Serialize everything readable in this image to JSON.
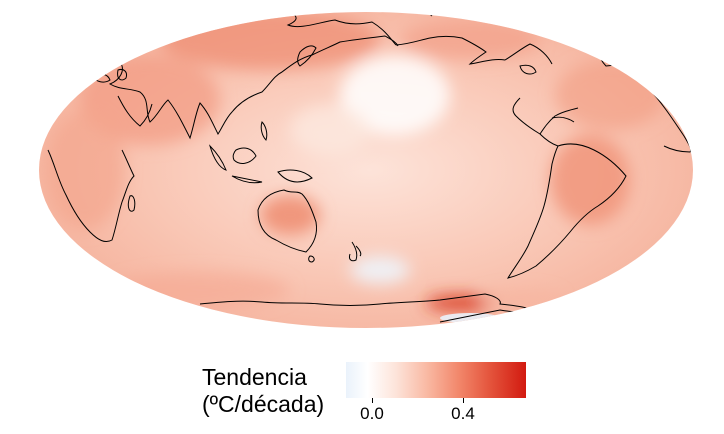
{
  "map": {
    "projection": "mollweide",
    "center": "pacific",
    "colors": {
      "ocean_base": "#f7c7b7",
      "land_warm": "#f3a08a",
      "cool": "#eaf2fb",
      "hot": "#d21a10",
      "coastline": "#000000"
    }
  },
  "legend": {
    "title_line1": "Tendencia",
    "title_line2": "(ºC/década)",
    "tick_0": "0.0",
    "tick_1": "0.4",
    "scale_min": -0.1,
    "scale_max": 0.7
  }
}
